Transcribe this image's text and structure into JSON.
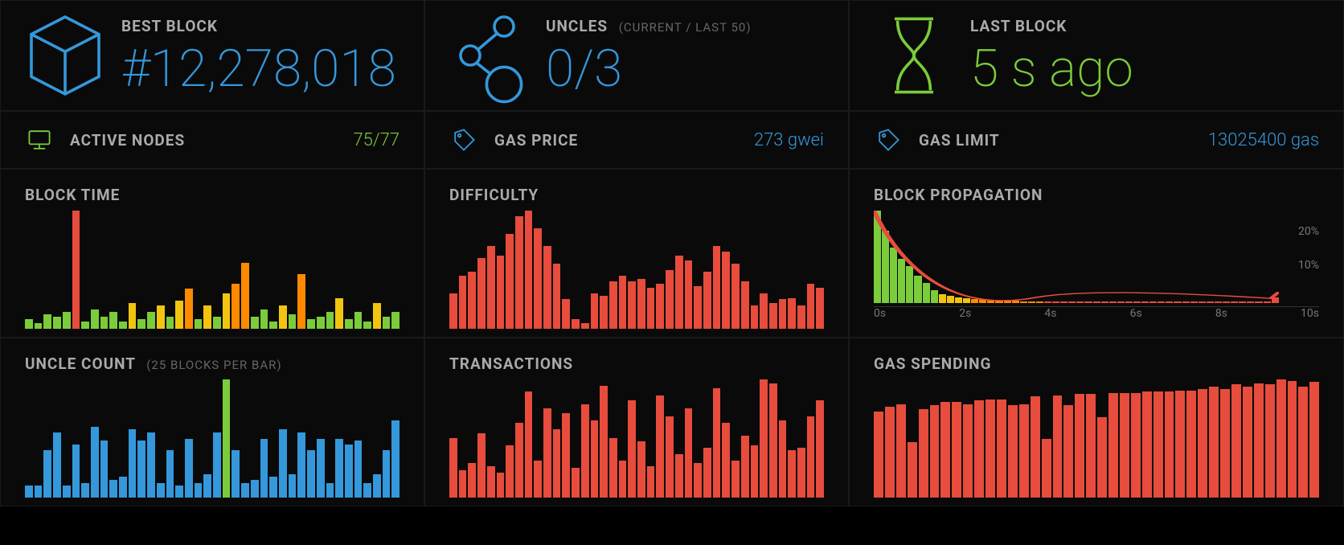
{
  "colors": {
    "blue": "#3498db",
    "green": "#7bcc3a",
    "yellow": "#f1c40f",
    "orange": "#ff8a00",
    "red": "#e74c3c",
    "gray_text": "#aaa",
    "gray_dim": "#666",
    "bg": "#0a0a0a"
  },
  "best_block": {
    "label": "BEST BLOCK",
    "value": "#12,278,018",
    "value_color": "#3498db",
    "icon_color": "#3498db"
  },
  "uncles": {
    "label": "UNCLES",
    "sublabel": "(CURRENT / LAST 50)",
    "value": "0/3",
    "value_color": "#3498db",
    "icon_color": "#3498db"
  },
  "last_block": {
    "label": "LAST BLOCK",
    "value": "5 s ago",
    "value_color": "#7bcc3a",
    "icon_color": "#7bcc3a"
  },
  "active_nodes": {
    "label": "ACTIVE NODES",
    "value": "75/77",
    "value_color": "#7bcc3a",
    "icon_color": "#7bcc3a"
  },
  "gas_price": {
    "label": "GAS PRICE",
    "value": "273 gwei",
    "value_color": "#3498db",
    "icon_color": "#3498db"
  },
  "gas_limit": {
    "label": "GAS LIMIT",
    "value": "13025400 gas",
    "value_color": "#3498db",
    "icon_color": "#3498db"
  },
  "block_time": {
    "title": "BLOCK TIME",
    "bars": [
      {
        "v": 8,
        "c": "#7bcc3a"
      },
      {
        "v": 5,
        "c": "#7bcc3a"
      },
      {
        "v": 12,
        "c": "#7bcc3a"
      },
      {
        "v": 10,
        "c": "#7bcc3a"
      },
      {
        "v": 14,
        "c": "#7bcc3a"
      },
      {
        "v": 100,
        "c": "#e74c3c"
      },
      {
        "v": 6,
        "c": "#7bcc3a"
      },
      {
        "v": 16,
        "c": "#7bcc3a"
      },
      {
        "v": 10,
        "c": "#7bcc3a"
      },
      {
        "v": 14,
        "c": "#7bcc3a"
      },
      {
        "v": 6,
        "c": "#7bcc3a"
      },
      {
        "v": 22,
        "c": "#f1c40f"
      },
      {
        "v": 8,
        "c": "#7bcc3a"
      },
      {
        "v": 14,
        "c": "#7bcc3a"
      },
      {
        "v": 20,
        "c": "#f1c40f"
      },
      {
        "v": 10,
        "c": "#7bcc3a"
      },
      {
        "v": 24,
        "c": "#f1c40f"
      },
      {
        "v": 34,
        "c": "#ff8a00"
      },
      {
        "v": 8,
        "c": "#7bcc3a"
      },
      {
        "v": 20,
        "c": "#f1c40f"
      },
      {
        "v": 10,
        "c": "#7bcc3a"
      },
      {
        "v": 30,
        "c": "#f1c40f"
      },
      {
        "v": 38,
        "c": "#ff8a00"
      },
      {
        "v": 56,
        "c": "#ff8a00"
      },
      {
        "v": 10,
        "c": "#7bcc3a"
      },
      {
        "v": 16,
        "c": "#7bcc3a"
      },
      {
        "v": 6,
        "c": "#7bcc3a"
      },
      {
        "v": 20,
        "c": "#f1c40f"
      },
      {
        "v": 12,
        "c": "#7bcc3a"
      },
      {
        "v": 46,
        "c": "#ff8a00"
      },
      {
        "v": 8,
        "c": "#7bcc3a"
      },
      {
        "v": 10,
        "c": "#7bcc3a"
      },
      {
        "v": 14,
        "c": "#7bcc3a"
      },
      {
        "v": 26,
        "c": "#f1c40f"
      },
      {
        "v": 8,
        "c": "#7bcc3a"
      },
      {
        "v": 14,
        "c": "#7bcc3a"
      },
      {
        "v": 6,
        "c": "#7bcc3a"
      },
      {
        "v": 22,
        "c": "#f1c40f"
      },
      {
        "v": 10,
        "c": "#7bcc3a"
      },
      {
        "v": 14,
        "c": "#7bcc3a"
      }
    ]
  },
  "difficulty": {
    "title": "DIFFICULTY",
    "bars": [
      {
        "v": 30,
        "c": "#e74c3c"
      },
      {
        "v": 45,
        "c": "#e74c3c"
      },
      {
        "v": 48,
        "c": "#e74c3c"
      },
      {
        "v": 60,
        "c": "#e74c3c"
      },
      {
        "v": 70,
        "c": "#e74c3c"
      },
      {
        "v": 62,
        "c": "#e74c3c"
      },
      {
        "v": 80,
        "c": "#e74c3c"
      },
      {
        "v": 95,
        "c": "#e74c3c"
      },
      {
        "v": 100,
        "c": "#e74c3c"
      },
      {
        "v": 85,
        "c": "#e74c3c"
      },
      {
        "v": 70,
        "c": "#e74c3c"
      },
      {
        "v": 55,
        "c": "#e74c3c"
      },
      {
        "v": 25,
        "c": "#e74c3c"
      },
      {
        "v": 8,
        "c": "#e74c3c"
      },
      {
        "v": 5,
        "c": "#e74c3c"
      },
      {
        "v": 30,
        "c": "#e74c3c"
      },
      {
        "v": 28,
        "c": "#e74c3c"
      },
      {
        "v": 40,
        "c": "#e74c3c"
      },
      {
        "v": 45,
        "c": "#e74c3c"
      },
      {
        "v": 40,
        "c": "#e74c3c"
      },
      {
        "v": 42,
        "c": "#e74c3c"
      },
      {
        "v": 35,
        "c": "#e74c3c"
      },
      {
        "v": 38,
        "c": "#e74c3c"
      },
      {
        "v": 50,
        "c": "#e74c3c"
      },
      {
        "v": 62,
        "c": "#e74c3c"
      },
      {
        "v": 58,
        "c": "#e74c3c"
      },
      {
        "v": 36,
        "c": "#e74c3c"
      },
      {
        "v": 48,
        "c": "#e74c3c"
      },
      {
        "v": 70,
        "c": "#e74c3c"
      },
      {
        "v": 65,
        "c": "#e74c3c"
      },
      {
        "v": 55,
        "c": "#e74c3c"
      },
      {
        "v": 40,
        "c": "#e74c3c"
      },
      {
        "v": 20,
        "c": "#e74c3c"
      },
      {
        "v": 30,
        "c": "#e74c3c"
      },
      {
        "v": 22,
        "c": "#e74c3c"
      },
      {
        "v": 25,
        "c": "#e74c3c"
      },
      {
        "v": 26,
        "c": "#e74c3c"
      },
      {
        "v": 20,
        "c": "#e74c3c"
      },
      {
        "v": 38,
        "c": "#e74c3c"
      },
      {
        "v": 35,
        "c": "#e74c3c"
      }
    ]
  },
  "block_propagation": {
    "title": "BLOCK PROPAGATION",
    "ylabels": [
      "20%",
      "10%"
    ],
    "xlabels": [
      "0s",
      "2s",
      "4s",
      "6s",
      "8s",
      "10s"
    ],
    "bars": [
      {
        "v": 100,
        "c": "#7bcc3a"
      },
      {
        "v": 78,
        "c": "#7bcc3a"
      },
      {
        "v": 60,
        "c": "#7bcc3a"
      },
      {
        "v": 48,
        "c": "#7bcc3a"
      },
      {
        "v": 40,
        "c": "#7bcc3a"
      },
      {
        "v": 30,
        "c": "#7bcc3a"
      },
      {
        "v": 22,
        "c": "#7bcc3a"
      },
      {
        "v": 14,
        "c": "#7bcc3a"
      },
      {
        "v": 10,
        "c": "#f1c40f"
      },
      {
        "v": 8,
        "c": "#f1c40f"
      },
      {
        "v": 6,
        "c": "#f1c40f"
      },
      {
        "v": 5,
        "c": "#f1c40f"
      },
      {
        "v": 4,
        "c": "#ff8a00"
      },
      {
        "v": 4,
        "c": "#ff8a00"
      },
      {
        "v": 3,
        "c": "#ff8a00"
      },
      {
        "v": 3,
        "c": "#ff8a00"
      },
      {
        "v": 3,
        "c": "#ff8a00"
      },
      {
        "v": 3,
        "c": "#ff8a00"
      },
      {
        "v": 2,
        "c": "#ff8a00"
      },
      {
        "v": 2,
        "c": "#ff8a00"
      },
      {
        "v": 2,
        "c": "#ff8a00"
      },
      {
        "v": 2,
        "c": "#e74c3c"
      },
      {
        "v": 2,
        "c": "#e74c3c"
      },
      {
        "v": 2,
        "c": "#e74c3c"
      },
      {
        "v": 2,
        "c": "#e74c3c"
      },
      {
        "v": 2,
        "c": "#e74c3c"
      },
      {
        "v": 2,
        "c": "#e74c3c"
      },
      {
        "v": 2,
        "c": "#e74c3c"
      },
      {
        "v": 2,
        "c": "#e74c3c"
      },
      {
        "v": 2,
        "c": "#e74c3c"
      },
      {
        "v": 2,
        "c": "#e74c3c"
      },
      {
        "v": 2,
        "c": "#e74c3c"
      },
      {
        "v": 2,
        "c": "#e74c3c"
      },
      {
        "v": 2,
        "c": "#e74c3c"
      },
      {
        "v": 2,
        "c": "#e74c3c"
      },
      {
        "v": 2,
        "c": "#e74c3c"
      },
      {
        "v": 2,
        "c": "#e74c3c"
      },
      {
        "v": 2,
        "c": "#e74c3c"
      },
      {
        "v": 2,
        "c": "#e74c3c"
      },
      {
        "v": 2,
        "c": "#e74c3c"
      },
      {
        "v": 2,
        "c": "#e74c3c"
      },
      {
        "v": 2,
        "c": "#e74c3c"
      },
      {
        "v": 2,
        "c": "#e74c3c"
      },
      {
        "v": 2,
        "c": "#e74c3c"
      },
      {
        "v": 2,
        "c": "#e74c3c"
      },
      {
        "v": 2,
        "c": "#e74c3c"
      },
      {
        "v": 2,
        "c": "#e74c3c"
      },
      {
        "v": 2,
        "c": "#e74c3c"
      },
      {
        "v": 2,
        "c": "#e74c3c"
      },
      {
        "v": 6,
        "c": "#e74c3c"
      }
    ],
    "curve_color": "#e74c3c"
  },
  "uncle_count": {
    "title": "UNCLE COUNT",
    "subtitle": "(25 BLOCKS PER BAR)",
    "bars": [
      {
        "v": 10,
        "c": "#3498db"
      },
      {
        "v": 10,
        "c": "#3498db"
      },
      {
        "v": 40,
        "c": "#3498db"
      },
      {
        "v": 55,
        "c": "#3498db"
      },
      {
        "v": 10,
        "c": "#3498db"
      },
      {
        "v": 45,
        "c": "#3498db"
      },
      {
        "v": 12,
        "c": "#3498db"
      },
      {
        "v": 60,
        "c": "#3498db"
      },
      {
        "v": 48,
        "c": "#3498db"
      },
      {
        "v": 15,
        "c": "#3498db"
      },
      {
        "v": 18,
        "c": "#3498db"
      },
      {
        "v": 58,
        "c": "#3498db"
      },
      {
        "v": 48,
        "c": "#3498db"
      },
      {
        "v": 55,
        "c": "#3498db"
      },
      {
        "v": 12,
        "c": "#3498db"
      },
      {
        "v": 40,
        "c": "#3498db"
      },
      {
        "v": 10,
        "c": "#3498db"
      },
      {
        "v": 50,
        "c": "#3498db"
      },
      {
        "v": 12,
        "c": "#3498db"
      },
      {
        "v": 20,
        "c": "#3498db"
      },
      {
        "v": 55,
        "c": "#3498db"
      },
      {
        "v": 100,
        "c": "#7bcc3a"
      },
      {
        "v": 40,
        "c": "#3498db"
      },
      {
        "v": 12,
        "c": "#3498db"
      },
      {
        "v": 15,
        "c": "#3498db"
      },
      {
        "v": 50,
        "c": "#3498db"
      },
      {
        "v": 18,
        "c": "#3498db"
      },
      {
        "v": 58,
        "c": "#3498db"
      },
      {
        "v": 20,
        "c": "#3498db"
      },
      {
        "v": 55,
        "c": "#3498db"
      },
      {
        "v": 40,
        "c": "#3498db"
      },
      {
        "v": 50,
        "c": "#3498db"
      },
      {
        "v": 12,
        "c": "#3498db"
      },
      {
        "v": 50,
        "c": "#3498db"
      },
      {
        "v": 45,
        "c": "#3498db"
      },
      {
        "v": 48,
        "c": "#3498db"
      },
      {
        "v": 12,
        "c": "#3498db"
      },
      {
        "v": 20,
        "c": "#3498db"
      },
      {
        "v": 40,
        "c": "#3498db"
      },
      {
        "v": 65,
        "c": "#3498db"
      }
    ]
  },
  "transactions": {
    "title": "TRANSACTIONS",
    "bars": [
      {
        "v": 48,
        "c": "#e74c3c"
      },
      {
        "v": 22,
        "c": "#e74c3c"
      },
      {
        "v": 28,
        "c": "#e74c3c"
      },
      {
        "v": 52,
        "c": "#e74c3c"
      },
      {
        "v": 25,
        "c": "#e74c3c"
      },
      {
        "v": 20,
        "c": "#e74c3c"
      },
      {
        "v": 42,
        "c": "#e74c3c"
      },
      {
        "v": 60,
        "c": "#e74c3c"
      },
      {
        "v": 85,
        "c": "#e74c3c"
      },
      {
        "v": 30,
        "c": "#e74c3c"
      },
      {
        "v": 72,
        "c": "#e74c3c"
      },
      {
        "v": 55,
        "c": "#e74c3c"
      },
      {
        "v": 68,
        "c": "#e74c3c"
      },
      {
        "v": 24,
        "c": "#e74c3c"
      },
      {
        "v": 75,
        "c": "#e74c3c"
      },
      {
        "v": 62,
        "c": "#e74c3c"
      },
      {
        "v": 90,
        "c": "#e74c3c"
      },
      {
        "v": 48,
        "c": "#e74c3c"
      },
      {
        "v": 30,
        "c": "#e74c3c"
      },
      {
        "v": 78,
        "c": "#e74c3c"
      },
      {
        "v": 45,
        "c": "#e74c3c"
      },
      {
        "v": 25,
        "c": "#e74c3c"
      },
      {
        "v": 82,
        "c": "#e74c3c"
      },
      {
        "v": 65,
        "c": "#e74c3c"
      },
      {
        "v": 35,
        "c": "#e74c3c"
      },
      {
        "v": 72,
        "c": "#e74c3c"
      },
      {
        "v": 28,
        "c": "#e74c3c"
      },
      {
        "v": 40,
        "c": "#e74c3c"
      },
      {
        "v": 88,
        "c": "#e74c3c"
      },
      {
        "v": 60,
        "c": "#e74c3c"
      },
      {
        "v": 30,
        "c": "#e74c3c"
      },
      {
        "v": 50,
        "c": "#e74c3c"
      },
      {
        "v": 42,
        "c": "#e74c3c"
      },
      {
        "v": 95,
        "c": "#e74c3c"
      },
      {
        "v": 92,
        "c": "#e74c3c"
      },
      {
        "v": 62,
        "c": "#e74c3c"
      },
      {
        "v": 38,
        "c": "#e74c3c"
      },
      {
        "v": 40,
        "c": "#e74c3c"
      },
      {
        "v": 65,
        "c": "#e74c3c"
      },
      {
        "v": 78,
        "c": "#e74c3c"
      }
    ]
  },
  "gas_spending": {
    "title": "GAS SPENDING",
    "bars": [
      {
        "v": 70,
        "c": "#e74c3c"
      },
      {
        "v": 74,
        "c": "#e74c3c"
      },
      {
        "v": 76,
        "c": "#e74c3c"
      },
      {
        "v": 45,
        "c": "#e74c3c"
      },
      {
        "v": 72,
        "c": "#e74c3c"
      },
      {
        "v": 75,
        "c": "#e74c3c"
      },
      {
        "v": 78,
        "c": "#e74c3c"
      },
      {
        "v": 78,
        "c": "#e74c3c"
      },
      {
        "v": 76,
        "c": "#e74c3c"
      },
      {
        "v": 79,
        "c": "#e74c3c"
      },
      {
        "v": 80,
        "c": "#e74c3c"
      },
      {
        "v": 80,
        "c": "#e74c3c"
      },
      {
        "v": 75,
        "c": "#e74c3c"
      },
      {
        "v": 76,
        "c": "#e74c3c"
      },
      {
        "v": 82,
        "c": "#e74c3c"
      },
      {
        "v": 48,
        "c": "#e74c3c"
      },
      {
        "v": 83,
        "c": "#e74c3c"
      },
      {
        "v": 75,
        "c": "#e74c3c"
      },
      {
        "v": 84,
        "c": "#e74c3c"
      },
      {
        "v": 84,
        "c": "#e74c3c"
      },
      {
        "v": 65,
        "c": "#e74c3c"
      },
      {
        "v": 85,
        "c": "#e74c3c"
      },
      {
        "v": 85,
        "c": "#e74c3c"
      },
      {
        "v": 85,
        "c": "#e74c3c"
      },
      {
        "v": 86,
        "c": "#e74c3c"
      },
      {
        "v": 86,
        "c": "#e74c3c"
      },
      {
        "v": 86,
        "c": "#e74c3c"
      },
      {
        "v": 87,
        "c": "#e74c3c"
      },
      {
        "v": 87,
        "c": "#e74c3c"
      },
      {
        "v": 88,
        "c": "#e74c3c"
      },
      {
        "v": 90,
        "c": "#e74c3c"
      },
      {
        "v": 88,
        "c": "#e74c3c"
      },
      {
        "v": 92,
        "c": "#e74c3c"
      },
      {
        "v": 90,
        "c": "#e74c3c"
      },
      {
        "v": 93,
        "c": "#e74c3c"
      },
      {
        "v": 92,
        "c": "#e74c3c"
      },
      {
        "v": 96,
        "c": "#e74c3c"
      },
      {
        "v": 95,
        "c": "#e74c3c"
      },
      {
        "v": 90,
        "c": "#e74c3c"
      },
      {
        "v": 94,
        "c": "#e74c3c"
      }
    ]
  }
}
